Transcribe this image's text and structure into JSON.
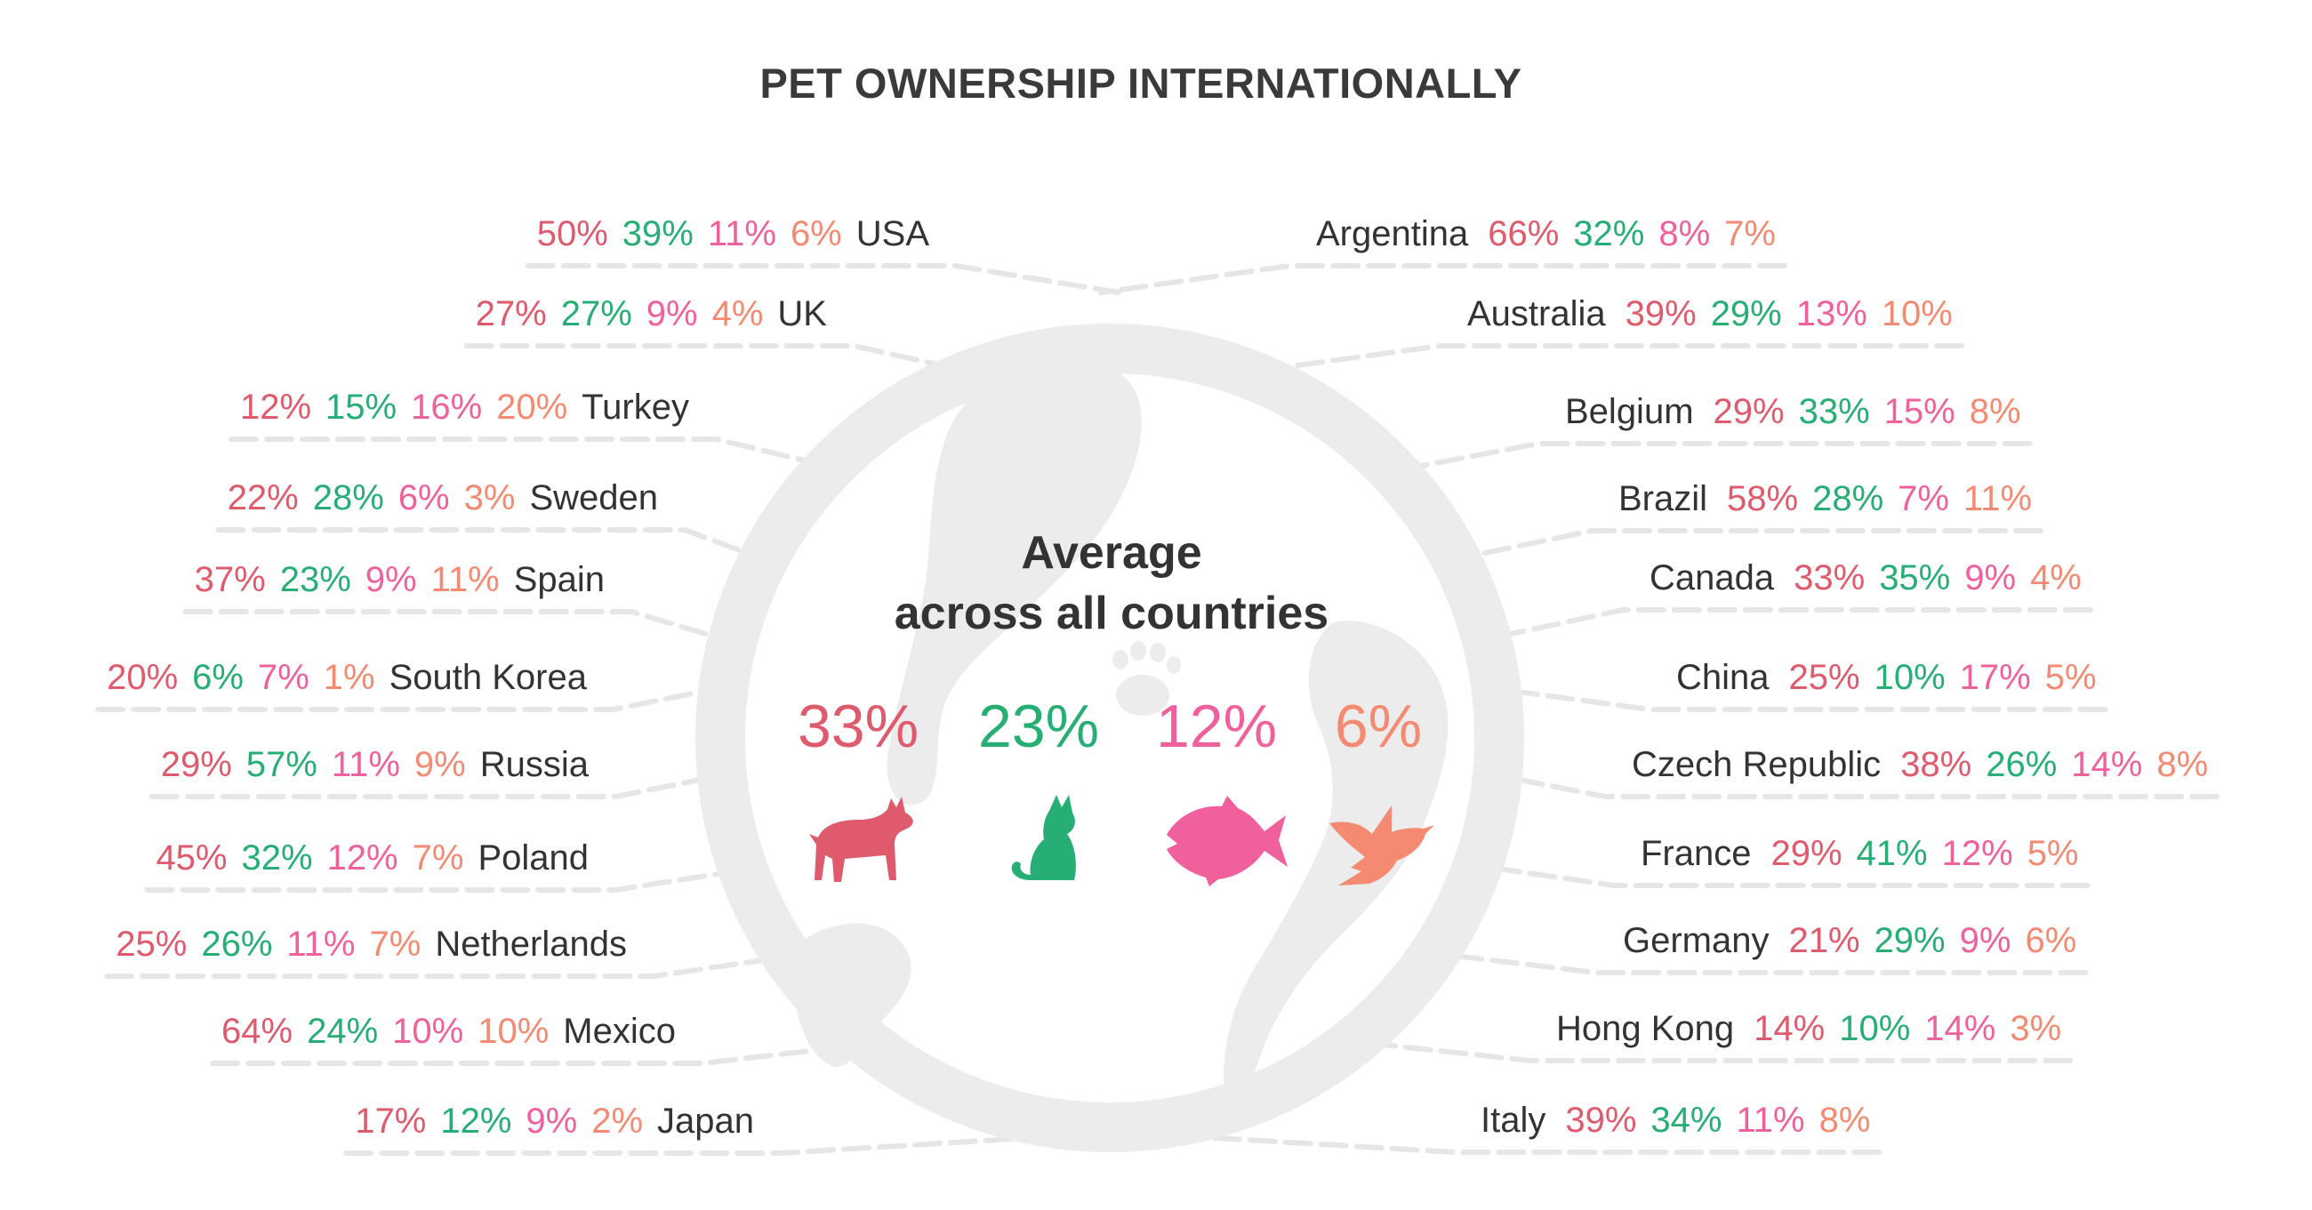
{
  "chart_data": {
    "type": "table",
    "title": "PET OWNERSHIP INTERNATIONALLY",
    "average_title_line1": "Average",
    "average_title_line2": "across all countries",
    "animals": [
      "dog",
      "cat",
      "fish",
      "bird"
    ],
    "averages": [
      "33%",
      "23%",
      "12%",
      "6%"
    ],
    "colors": {
      "dog": "#e05a6d",
      "cat": "#27ae74",
      "fish": "#f0609d",
      "bird": "#f48a72",
      "globe": "#ececec",
      "dash": "#e6e6e6"
    },
    "left": [
      {
        "country": "USA",
        "values": [
          "50%",
          "39%",
          "11%",
          "6%"
        ]
      },
      {
        "country": "UK",
        "values": [
          "27%",
          "27%",
          "9%",
          "4%"
        ]
      },
      {
        "country": "Turkey",
        "values": [
          "12%",
          "15%",
          "16%",
          "20%"
        ]
      },
      {
        "country": "Sweden",
        "values": [
          "22%",
          "28%",
          "6%",
          "3%"
        ]
      },
      {
        "country": "Spain",
        "values": [
          "37%",
          "23%",
          "9%",
          "11%"
        ]
      },
      {
        "country": "South Korea",
        "values": [
          "20%",
          "6%",
          "7%",
          "1%"
        ]
      },
      {
        "country": "Russia",
        "values": [
          "29%",
          "57%",
          "11%",
          "9%"
        ]
      },
      {
        "country": "Poland",
        "values": [
          "45%",
          "32%",
          "12%",
          "7%"
        ]
      },
      {
        "country": "Netherlands",
        "values": [
          "25%",
          "26%",
          "11%",
          "7%"
        ]
      },
      {
        "country": "Mexico",
        "values": [
          "64%",
          "24%",
          "10%",
          "10%"
        ]
      },
      {
        "country": "Japan",
        "values": [
          "17%",
          "12%",
          "9%",
          "2%"
        ]
      }
    ],
    "right": [
      {
        "country": "Argentina",
        "values": [
          "66%",
          "32%",
          "8%",
          "7%"
        ]
      },
      {
        "country": "Australia",
        "values": [
          "39%",
          "29%",
          "13%",
          "10%"
        ]
      },
      {
        "country": "Belgium",
        "values": [
          "29%",
          "33%",
          "15%",
          "8%"
        ]
      },
      {
        "country": "Brazil",
        "values": [
          "58%",
          "28%",
          "7%",
          "11%"
        ]
      },
      {
        "country": "Canada",
        "values": [
          "33%",
          "35%",
          "9%",
          "4%"
        ]
      },
      {
        "country": "China",
        "values": [
          "25%",
          "10%",
          "17%",
          "5%"
        ]
      },
      {
        "country": "Czech Republic",
        "values": [
          "38%",
          "26%",
          "14%",
          "8%"
        ]
      },
      {
        "country": "France",
        "values": [
          "29%",
          "41%",
          "12%",
          "5%"
        ]
      },
      {
        "country": "Germany",
        "values": [
          "21%",
          "29%",
          "9%",
          "6%"
        ]
      },
      {
        "country": "Hong Kong",
        "values": [
          "14%",
          "10%",
          "14%",
          "3%"
        ]
      },
      {
        "country": "Italy",
        "values": [
          "39%",
          "34%",
          "11%",
          "8%"
        ]
      }
    ]
  }
}
